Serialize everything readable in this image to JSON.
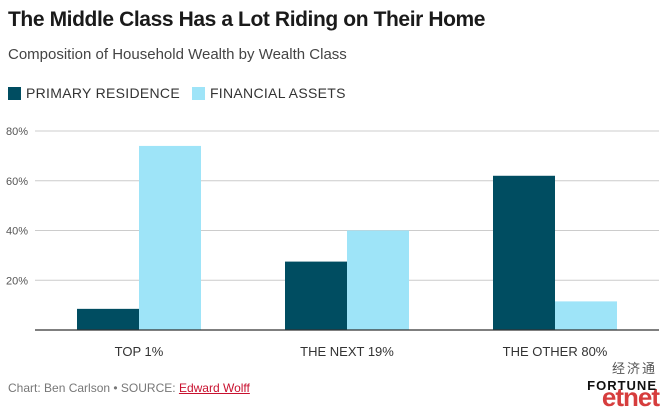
{
  "header": {
    "title": "The Middle Class Has a Lot Riding on Their Home",
    "subtitle": "Composition of Household Wealth by Wealth Class"
  },
  "colors": {
    "primary_residence": "#004d61",
    "financial_assets": "#9ee4f8",
    "grid": "#cccccc",
    "axis": "#333333"
  },
  "chart_data": {
    "type": "bar",
    "categories": [
      "TOP 1%",
      "THE NEXT 19%",
      "THE OTHER 80%"
    ],
    "series": [
      {
        "name": "PRIMARY RESIDENCE",
        "values": [
          8.5,
          27.5,
          62
        ]
      },
      {
        "name": "FINANCIAL ASSETS",
        "values": [
          74,
          40,
          11.5
        ]
      }
    ],
    "yticks": [
      "20%",
      "40%",
      "60%",
      "80%"
    ],
    "ylim": [
      0,
      80
    ],
    "grid": true,
    "legend_position": "top-left"
  },
  "footer": {
    "credit": "Chart: Ben Carlson • SOURCE: ",
    "source_link": "Edward Wolff"
  },
  "logos": {
    "cn": "经济通",
    "fortune": "FORTUNE",
    "etnet": "etnet"
  }
}
